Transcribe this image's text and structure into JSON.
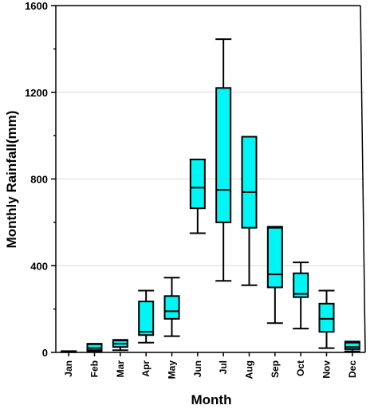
{
  "chart_data": {
    "type": "box",
    "xlabel": "Month",
    "ylabel": "Monthly Rainfall(mm)",
    "ylim": [
      0,
      1600
    ],
    "yticks": [
      0,
      400,
      800,
      1200,
      1600
    ],
    "grid": "horizontal",
    "box_color": "#00f5f5",
    "categories": [
      "Jan",
      "Feb",
      "Mar",
      "Apr",
      "May",
      "Jun",
      "Jul",
      "Aug",
      "Sep",
      "Oct",
      "Nov",
      "Dec"
    ],
    "boxes": [
      {
        "min": 2,
        "q1": 3,
        "median": 4,
        "q3": 5,
        "max": 6
      },
      {
        "min": 5,
        "q1": 10,
        "median": 20,
        "q3": 38,
        "max": 40
      },
      {
        "min": 10,
        "q1": 25,
        "median": 40,
        "q3": 55,
        "max": 58
      },
      {
        "min": 45,
        "q1": 80,
        "median": 95,
        "q3": 235,
        "max": 285
      },
      {
        "min": 75,
        "q1": 155,
        "median": 190,
        "q3": 260,
        "max": 345
      },
      {
        "min": 550,
        "q1": 665,
        "median": 760,
        "q3": 890,
        "max": 890
      },
      {
        "min": 330,
        "q1": 600,
        "median": 750,
        "q3": 1220,
        "max": 1445
      },
      {
        "min": 310,
        "q1": 575,
        "median": 740,
        "q3": 995,
        "max": 995
      },
      {
        "min": 135,
        "q1": 300,
        "median": 360,
        "q3": 575,
        "max": 580
      },
      {
        "min": 110,
        "q1": 255,
        "median": 270,
        "q3": 365,
        "max": 415
      },
      {
        "min": 20,
        "q1": 95,
        "median": 155,
        "q3": 225,
        "max": 285
      },
      {
        "min": 5,
        "q1": 15,
        "median": 25,
        "q3": 45,
        "max": 50
      }
    ]
  }
}
